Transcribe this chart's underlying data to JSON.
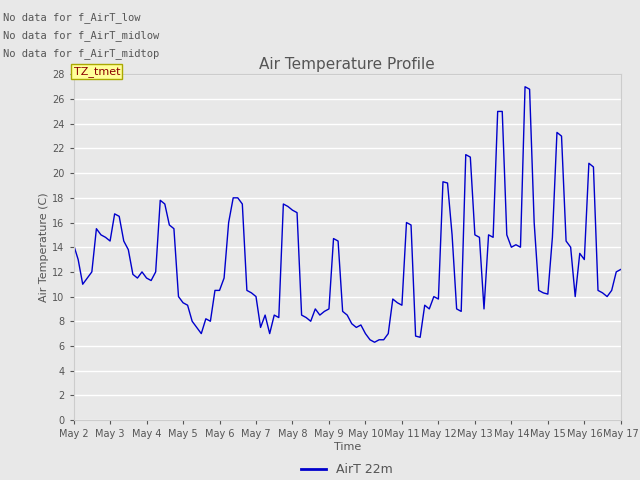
{
  "title": "Air Temperature Profile",
  "xlabel": "Time",
  "ylabel": "Air Temperature (C)",
  "legend_label": "AirT 22m",
  "line_color": "#0000cc",
  "background_color": "#e8e8e8",
  "plot_bg_color": "#e8e8e8",
  "ylim": [
    0,
    28
  ],
  "yticks": [
    0,
    2,
    4,
    6,
    8,
    10,
    12,
    14,
    16,
    18,
    20,
    22,
    24,
    26,
    28
  ],
  "annotations": [
    "No data for f_AirT_low",
    "No data for f_AirT_midlow",
    "No data for f_AirT_midtop"
  ],
  "tz_label": "TZ_tmet",
  "x_tick_labels": [
    "May 2",
    "May 3",
    "May 4",
    "May 5",
    "May 6",
    "May 7",
    "May 8",
    "May 9",
    "May 10",
    "May 11",
    "May 12",
    "May 13",
    "May 14",
    "May 15",
    "May 16",
    "May 17"
  ],
  "x_values": [
    0,
    0.125,
    0.25,
    0.375,
    0.5,
    0.625,
    0.75,
    0.875,
    1,
    1.125,
    1.25,
    1.375,
    1.5,
    1.625,
    1.75,
    1.875,
    2,
    2.125,
    2.25,
    2.375,
    2.5,
    2.625,
    2.75,
    2.875,
    3,
    3.125,
    3.25,
    3.375,
    3.5,
    3.625,
    3.75,
    3.875,
    4,
    4.125,
    4.25,
    4.375,
    4.5,
    4.625,
    4.75,
    4.875,
    5,
    5.125,
    5.25,
    5.375,
    5.5,
    5.625,
    5.75,
    5.875,
    6,
    6.125,
    6.25,
    6.375,
    6.5,
    6.625,
    6.75,
    6.875,
    7,
    7.125,
    7.25,
    7.375,
    7.5,
    7.625,
    7.75,
    7.875,
    8,
    8.125,
    8.25,
    8.375,
    8.5,
    8.625,
    8.75,
    8.875,
    9,
    9.125,
    9.25,
    9.375,
    9.5,
    9.625,
    9.75,
    9.875,
    10,
    10.125,
    10.25,
    10.375,
    10.5,
    10.625,
    10.75,
    10.875,
    11,
    11.125,
    11.25,
    11.375,
    11.5,
    11.625,
    11.75,
    11.875,
    12,
    12.125,
    12.25,
    12.375,
    12.5,
    12.625,
    12.75,
    12.875,
    13,
    13.125,
    13.25,
    13.375,
    13.5,
    13.625,
    13.75,
    13.875,
    14,
    14.125,
    14.25,
    14.375,
    14.5,
    14.625,
    14.75,
    14.875,
    15
  ],
  "y_values": [
    14.2,
    13.0,
    11.0,
    11.5,
    12.0,
    15.5,
    15.0,
    14.8,
    14.5,
    16.7,
    16.5,
    14.5,
    13.8,
    11.8,
    11.5,
    12.0,
    11.5,
    11.3,
    12.0,
    17.8,
    17.5,
    15.8,
    15.5,
    10.0,
    9.5,
    9.3,
    8.0,
    7.5,
    7.0,
    8.2,
    8.0,
    10.5,
    10.5,
    11.5,
    16.0,
    18.0,
    18.0,
    17.5,
    10.5,
    10.3,
    10.0,
    7.5,
    8.5,
    7.0,
    8.5,
    8.3,
    17.5,
    17.3,
    17.0,
    16.8,
    8.5,
    8.3,
    8.0,
    9.0,
    8.5,
    8.8,
    9.0,
    14.7,
    14.5,
    8.8,
    8.5,
    7.8,
    7.5,
    7.7,
    7.0,
    6.5,
    6.3,
    6.5,
    6.5,
    7.0,
    9.8,
    9.5,
    9.3,
    16.0,
    15.8,
    6.8,
    6.7,
    9.3,
    9.0,
    10.0,
    9.8,
    19.3,
    19.2,
    15.0,
    9.0,
    8.8,
    21.5,
    21.3,
    15.0,
    14.8,
    9.0,
    15.0,
    14.8,
    25.0,
    25.0,
    15.0,
    14.0,
    14.2,
    14.0,
    27.0,
    26.8,
    16.0,
    10.5,
    10.3,
    10.2,
    14.8,
    23.3,
    23.0,
    14.5,
    14.0,
    10.0,
    13.5,
    13.0,
    20.8,
    20.5,
    10.5,
    10.3,
    10.0,
    10.5,
    12.0,
    12.2
  ],
  "figsize": [
    6.4,
    4.8
  ],
  "dpi": 100,
  "title_fontsize": 11,
  "label_fontsize": 8,
  "tick_fontsize": 7,
  "annot_fontsize": 7.5,
  "text_color": "#555555",
  "grid_color": "#ffffff",
  "spine_color": "#cccccc"
}
